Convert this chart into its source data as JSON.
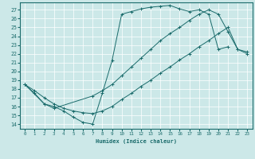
{
  "xlabel": "Humidex (Indice chaleur)",
  "xlim": [
    -0.5,
    23.5
  ],
  "ylim": [
    13.5,
    27.8
  ],
  "xticks": [
    0,
    1,
    2,
    3,
    4,
    5,
    6,
    7,
    8,
    9,
    10,
    11,
    12,
    13,
    14,
    15,
    16,
    17,
    18,
    19,
    20,
    21,
    22,
    23
  ],
  "yticks": [
    14,
    15,
    16,
    17,
    18,
    19,
    20,
    21,
    22,
    23,
    24,
    25,
    26,
    27
  ],
  "bg_color": "#cce8e8",
  "line_color": "#1a6b6b",
  "grid_color": "#ffffff",
  "sA_x": [
    0,
    1,
    2,
    3,
    4,
    5,
    6,
    7,
    8,
    9,
    10,
    11,
    12,
    13,
    14,
    15,
    16,
    17,
    18,
    19,
    20,
    21
  ],
  "sA_y": [
    18.5,
    17.5,
    16.3,
    16.0,
    15.5,
    14.8,
    14.2,
    14.0,
    17.5,
    21.2,
    26.5,
    26.8,
    27.1,
    27.3,
    27.4,
    27.5,
    27.1,
    26.8,
    27.0,
    26.5,
    22.5,
    22.8
  ],
  "sB_x": [
    0,
    1,
    2,
    3,
    4,
    5,
    6,
    7,
    8,
    9,
    10,
    11,
    12,
    13,
    14,
    15,
    16,
    17,
    18,
    19,
    20,
    21,
    22,
    23
  ],
  "sB_y": [
    18.5,
    17.8,
    17.0,
    16.3,
    15.8,
    15.5,
    15.3,
    15.2,
    15.5,
    16.0,
    16.8,
    17.5,
    18.3,
    19.0,
    19.8,
    20.5,
    21.3,
    22.0,
    22.8,
    23.5,
    24.3,
    25.0,
    22.5,
    22.0
  ],
  "sC_x": [
    0,
    2,
    3,
    7,
    8,
    9,
    10,
    11,
    12,
    13,
    14,
    15,
    16,
    17,
    18,
    19,
    20,
    21,
    22,
    23
  ],
  "sC_y": [
    18.5,
    16.3,
    15.8,
    17.2,
    17.8,
    18.5,
    19.5,
    20.5,
    21.5,
    22.5,
    23.5,
    24.3,
    25.0,
    25.8,
    26.5,
    27.0,
    26.5,
    24.5,
    22.5,
    22.2
  ]
}
